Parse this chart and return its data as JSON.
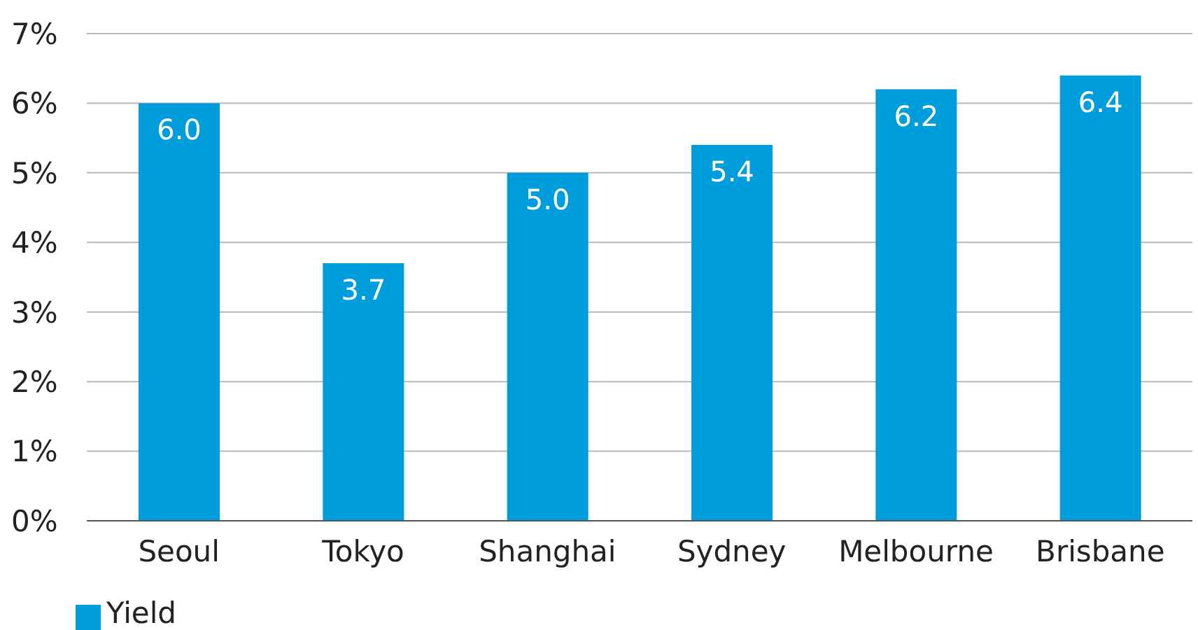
{
  "chart_data": {
    "type": "bar",
    "categories": [
      "Seoul",
      "Tokyo",
      "Shanghai",
      "Sydney",
      "Melbourne",
      "Brisbane"
    ],
    "series": [
      {
        "name": "Yield",
        "color": "#009ddc",
        "values": [
          6.0,
          3.7,
          5.0,
          5.4,
          6.2,
          6.4
        ],
        "value_labels": [
          "6.0",
          "3.7",
          "5.0",
          "5.4",
          "6.2",
          "6.4"
        ]
      }
    ],
    "ylim": [
      0,
      7
    ],
    "yticks": [
      {
        "value": 0,
        "label": "0%"
      },
      {
        "value": 1,
        "label": "1%"
      },
      {
        "value": 2,
        "label": "2%"
      },
      {
        "value": 3,
        "label": "3%"
      },
      {
        "value": 4,
        "label": "4%"
      },
      {
        "value": 5,
        "label": "5%"
      },
      {
        "value": 6,
        "label": "6%"
      },
      {
        "value": 7,
        "label": "7%"
      }
    ],
    "grid": "y",
    "legend": "bottom left"
  }
}
